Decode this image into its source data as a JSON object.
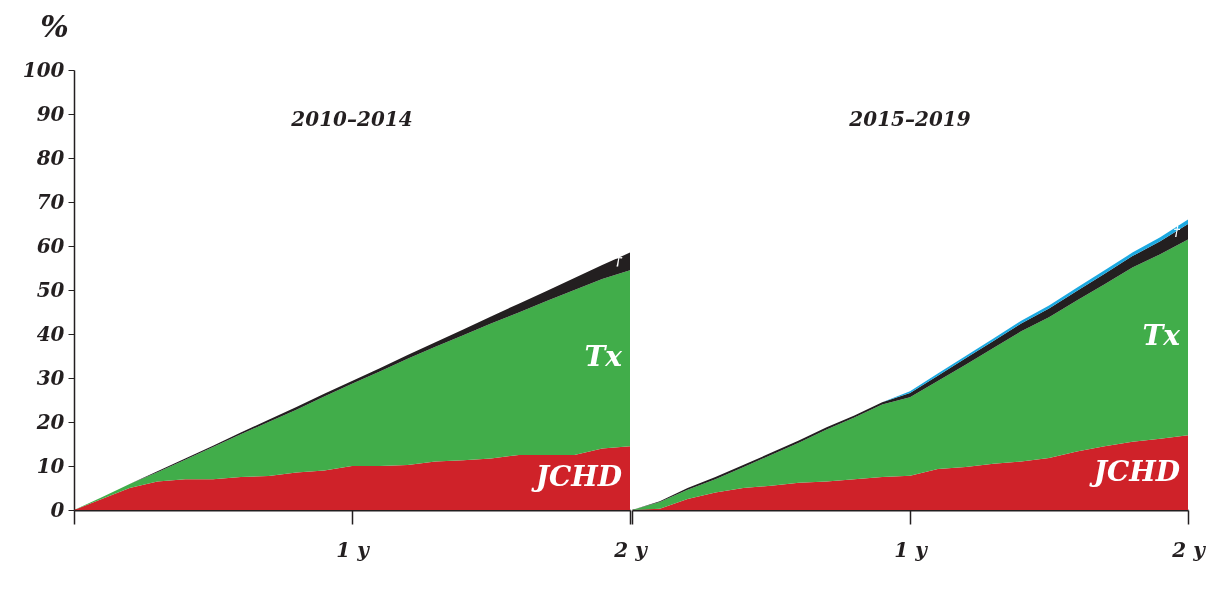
{
  "chart_data": [
    {
      "type": "area",
      "title": "2010–2014",
      "ylabel": "%",
      "stacked": true,
      "legend": false,
      "grid": false,
      "x": [
        0,
        0.1,
        0.2,
        0.3,
        0.4,
        0.5,
        0.6,
        0.7,
        0.8,
        0.9,
        1,
        1.1,
        1.2,
        1.3,
        1.4,
        1.5,
        1.6,
        1.7,
        1.8,
        1.9,
        2
      ],
      "xlim": [
        0,
        2
      ],
      "xticks": [
        {
          "value": 0,
          "label": null
        },
        {
          "value": 1,
          "label": "1 y"
        },
        {
          "value": 2,
          "label": "2 y"
        }
      ],
      "ylim": [
        0,
        100
      ],
      "yticks": [
        0,
        10,
        20,
        30,
        40,
        50,
        60,
        70,
        80,
        90,
        100
      ],
      "series": [
        {
          "name": "JCHD",
          "color": "#cf2229",
          "values": [
            0,
            2.5,
            5,
            6.5,
            7,
            7,
            7.5,
            7.7,
            8.5,
            9,
            10,
            10,
            10.2,
            11,
            11.3,
            11.7,
            12.5,
            12.5,
            12.5,
            14,
            14.5
          ]
        },
        {
          "name": "Tx",
          "color": "#41ad4a",
          "values": [
            0,
            0.4,
            0.9,
            2.1,
            4.4,
            7.3,
            9.7,
            12.3,
            14.3,
            16.8,
            18.7,
            21.5,
            24.2,
            26.1,
            28.4,
            30.7,
            32.4,
            35,
            37.5,
            38.5,
            40
          ]
        },
        {
          "name": "†",
          "color": "#231f20",
          "values": [
            0,
            0,
            0,
            0.2,
            0.3,
            0.3,
            0.4,
            0.5,
            0.6,
            0.6,
            0.6,
            0.7,
            0.8,
            1,
            1.3,
            1.6,
            2,
            2.3,
            2.7,
            3.2,
            4
          ]
        }
      ]
    },
    {
      "type": "area",
      "title": "2015–2019",
      "stacked": true,
      "legend": false,
      "grid": false,
      "tick_labels": "x",
      "x": [
        0,
        0.1,
        0.2,
        0.3,
        0.4,
        0.5,
        0.6,
        0.7,
        0.8,
        0.9,
        1,
        1.1,
        1.2,
        1.3,
        1.4,
        1.5,
        1.6,
        1.7,
        1.8,
        1.9,
        2
      ],
      "xlim": [
        0,
        2
      ],
      "xticks": [
        {
          "value": 0,
          "label": null
        },
        {
          "value": 1,
          "label": "1 y"
        },
        {
          "value": 2,
          "label": "2 y"
        }
      ],
      "ylim": [
        0,
        100
      ],
      "yticks": [
        0,
        10,
        20,
        30,
        40,
        50,
        60,
        70,
        80,
        90,
        100
      ],
      "series": [
        {
          "name": "JCHD",
          "color": "#cf2229",
          "values": [
            0,
            0.3,
            2.5,
            4,
            5,
            5.5,
            6.2,
            6.5,
            7,
            7.5,
            7.8,
            9.3,
            9.8,
            10.5,
            11,
            11.8,
            13.3,
            14.5,
            15.5,
            16.2,
            17
          ]
        },
        {
          "name": "Tx",
          "color": "#41ad4a",
          "values": [
            0,
            1.5,
            2.1,
            3,
            4.7,
            7,
            9.1,
            11.8,
            14,
            16.5,
            17.8,
            20,
            23.2,
            26.3,
            29.6,
            32,
            34.3,
            36.8,
            39.6,
            41.9,
            44.5
          ]
        },
        {
          "name": "†",
          "color": "#231f20",
          "values": [
            0,
            0.2,
            0.4,
            0.5,
            0.5,
            0.5,
            0.5,
            0.5,
            0.5,
            0.5,
            1,
            1.2,
            1.5,
            1.6,
            1.8,
            2,
            2.2,
            2.4,
            2.6,
            3,
            3.5
          ]
        },
        {
          "color": "#1ba9e1",
          "values": [
            0,
            0,
            0,
            0,
            0,
            0,
            0,
            0,
            0,
            0,
            0.4,
            0.5,
            0.5,
            0.6,
            0.6,
            0.7,
            0.7,
            0.8,
            0.8,
            0.9,
            1
          ]
        }
      ]
    }
  ]
}
